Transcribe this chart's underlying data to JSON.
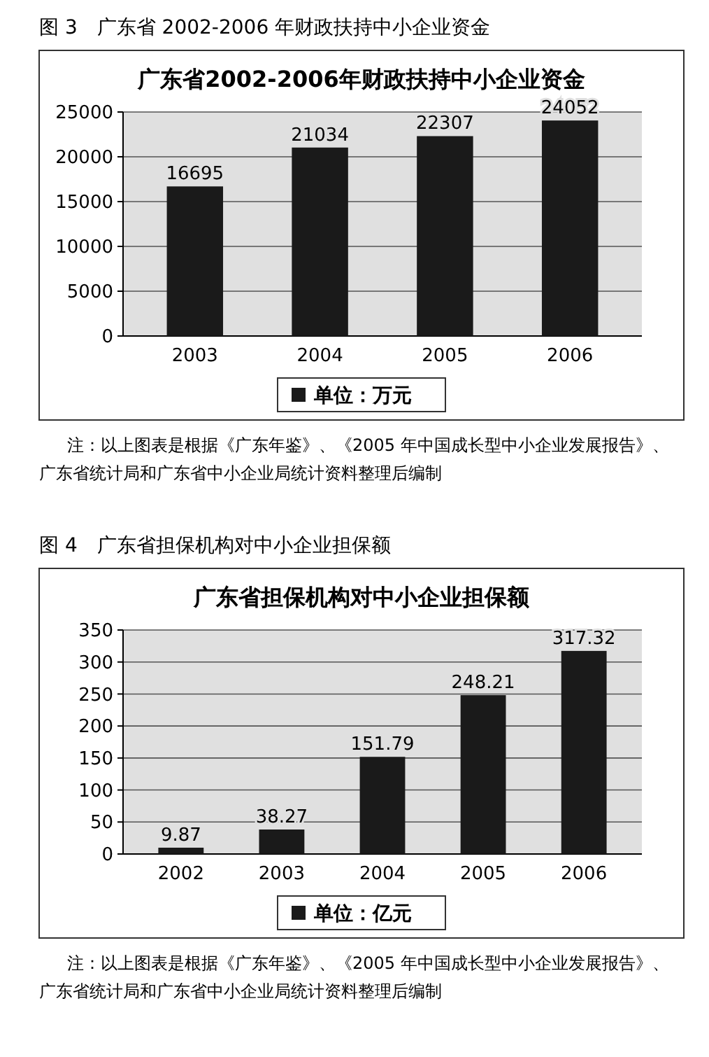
{
  "chart_data": [
    {
      "type": "bar",
      "title": "广东省2002-2006年财政扶持中小企业资金",
      "categories": [
        "2003",
        "2004",
        "2005",
        "2006"
      ],
      "series": [
        {
          "name": "单位：万元",
          "color": "#1a1a1a",
          "values": [
            16695,
            21034,
            22307,
            24052
          ]
        }
      ],
      "ylim": [
        0,
        25000
      ],
      "yticks": [
        0,
        5000,
        10000,
        15000,
        20000,
        25000
      ],
      "grid": "y",
      "legend": "bottom",
      "data_labels": true,
      "annotations": [
        "图 3　广东省 2002-2006 年财政扶持中小企业资金",
        "注：以上图表是根据《广东年鉴》、《2005 年中国成长型中小企业发展报告》、广东省统计局和广东省中小企业局统计资料整理后编制"
      ]
    },
    {
      "type": "bar",
      "title": "广东省担保机构对中小企业担保额",
      "categories": [
        "2002",
        "2003",
        "2004",
        "2005",
        "2006"
      ],
      "series": [
        {
          "name": "单位：亿元",
          "color": "#1a1a1a",
          "values": [
            9.87,
            38.27,
            151.79,
            248.21,
            317.32
          ]
        }
      ],
      "ylim": [
        0,
        350
      ],
      "yticks": [
        0,
        50,
        100,
        150,
        200,
        250,
        300,
        350
      ],
      "grid": "y",
      "legend": "bottom",
      "data_labels": true,
      "annotations": [
        "图 4　广东省担保机构对中小企业担保额",
        "注：以上图表是根据《广东年鉴》、《2005 年中国成长型中小企业发展报告》、广东省统计局和广东省中小企业局统计资料整理后编制"
      ]
    }
  ]
}
